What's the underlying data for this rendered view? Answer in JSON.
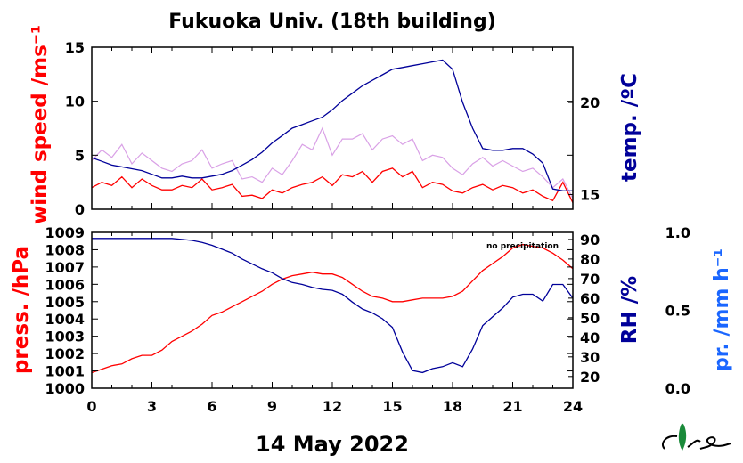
{
  "chart_data": [
    {
      "type": "line",
      "title": "Fukuoka Univ. (18th building)",
      "ylabel_left": "wind speed /ms⁻¹",
      "ylabel_right": "temp. /ºC",
      "xlim": [
        0,
        24
      ],
      "ylim_left": [
        0,
        15
      ],
      "ylim_right": [
        14.2,
        23.0
      ],
      "yticks_left": [
        "0",
        "5",
        "10",
        "15"
      ],
      "yticks_right": [
        "15",
        "20"
      ],
      "series": [
        {
          "axis": "left",
          "color": "#ff0000",
          "x": [
            0,
            0.5,
            1,
            1.5,
            2,
            2.5,
            3,
            3.5,
            4,
            4.5,
            5,
            5.5,
            6,
            6.5,
            7,
            7.5,
            8,
            8.5,
            9,
            9.5,
            10,
            10.5,
            11,
            11.5,
            12,
            12.5,
            13,
            13.5,
            14,
            14.5,
            15,
            15.5,
            16,
            16.5,
            17,
            17.5,
            18,
            18.5,
            19,
            19.5,
            20,
            20.5,
            21,
            21.5,
            22,
            22.5,
            23,
            23.5,
            24
          ],
          "values": [
            2.0,
            2.5,
            2.2,
            3.0,
            2.0,
            2.8,
            2.2,
            1.8,
            1.8,
            2.2,
            2.0,
            2.8,
            1.8,
            2.0,
            2.3,
            1.2,
            1.3,
            1.0,
            1.8,
            1.5,
            2.0,
            2.3,
            2.5,
            3.0,
            2.2,
            3.2,
            3.0,
            3.5,
            2.5,
            3.5,
            3.8,
            3.0,
            3.5,
            2.0,
            2.5,
            2.3,
            1.7,
            1.5,
            2.0,
            2.3,
            1.8,
            2.2,
            2.0,
            1.5,
            1.8,
            1.2,
            0.8,
            2.5,
            0.6
          ]
        },
        {
          "axis": "left",
          "color": "#d9a0e6",
          "note": "",
          "x": [
            0,
            0.5,
            1,
            1.5,
            2,
            2.5,
            3,
            3.5,
            4,
            4.5,
            5,
            5.5,
            6,
            6.5,
            7,
            7.5,
            8,
            8.5,
            9,
            9.5,
            10,
            10.5,
            11,
            11.5,
            12,
            12.5,
            13,
            13.5,
            14,
            14.5,
            15,
            15.5,
            16,
            16.5,
            17,
            17.5,
            18,
            18.5,
            19,
            19.5,
            20,
            20.5,
            21,
            21.5,
            22,
            22.5,
            23,
            23.5,
            24
          ],
          "values": [
            4.5,
            5.5,
            4.8,
            6.0,
            4.2,
            5.2,
            4.5,
            3.8,
            3.5,
            4.2,
            4.5,
            5.5,
            3.8,
            4.2,
            4.5,
            2.8,
            3.0,
            2.5,
            3.8,
            3.2,
            4.5,
            6.0,
            5.5,
            7.5,
            5.0,
            6.5,
            6.5,
            7.0,
            5.5,
            6.5,
            6.8,
            6.0,
            6.5,
            4.5,
            5.0,
            4.8,
            3.8,
            3.2,
            4.2,
            4.8,
            4.0,
            4.5,
            4.0,
            3.5,
            3.8,
            3.0,
            2.0,
            2.8,
            1.0
          ]
        },
        {
          "axis": "right",
          "color": "#000099",
          "x": [
            0,
            0.5,
            1,
            1.5,
            2,
            2.5,
            3,
            3.5,
            4,
            4.5,
            5,
            5.5,
            6,
            6.5,
            7,
            7.5,
            8,
            8.5,
            9,
            9.5,
            10,
            10.5,
            11,
            11.5,
            12,
            12.5,
            13,
            13.5,
            14,
            14.5,
            15,
            15.5,
            16,
            16.5,
            17,
            17.5,
            18,
            18.5,
            19,
            19.5,
            20,
            20.5,
            21,
            21.5,
            22,
            22.5,
            23,
            23.5,
            24
          ],
          "values": [
            17.0,
            16.8,
            16.6,
            16.5,
            16.4,
            16.3,
            16.1,
            15.9,
            15.9,
            16.0,
            15.9,
            15.9,
            16.0,
            16.1,
            16.3,
            16.6,
            16.9,
            17.3,
            17.8,
            18.2,
            18.6,
            18.8,
            19.0,
            19.2,
            19.6,
            20.1,
            20.5,
            20.9,
            21.2,
            21.5,
            21.8,
            21.9,
            22.0,
            22.1,
            22.2,
            22.3,
            21.8,
            20.0,
            18.6,
            17.5,
            17.4,
            17.4,
            17.5,
            17.5,
            17.2,
            16.7,
            15.3,
            15.2,
            15.2
          ]
        }
      ]
    },
    {
      "type": "line",
      "xlabel": "14 May 2022",
      "ylabel_left": "press. /hPa",
      "ylabel_right": "RH /%",
      "ylabel_right2": "pr. /mm h⁻¹",
      "annotation": "no precipitation",
      "xlim": [
        0,
        24
      ],
      "xticks": [
        "0",
        "3",
        "6",
        "9",
        "12",
        "15",
        "18",
        "21",
        "24"
      ],
      "ylim_left": [
        1000,
        1009
      ],
      "ylim_right": [
        14.0,
        93.6
      ],
      "ylim_right2": [
        0.0,
        1.0
      ],
      "yticks_left": [
        "1000",
        "1001",
        "1002",
        "1003",
        "1004",
        "1005",
        "1006",
        "1007",
        "1008",
        "1009"
      ],
      "yticks_right": [
        "20",
        "30",
        "40",
        "50",
        "60",
        "70",
        "80",
        "90"
      ],
      "yticks_right2": [
        "0.0",
        "0.5",
        "1.0"
      ],
      "series": [
        {
          "axis": "left",
          "color": "#ff0000",
          "x": [
            0,
            0.5,
            1,
            1.5,
            2,
            2.5,
            3,
            3.5,
            4,
            4.5,
            5,
            5.5,
            6,
            6.5,
            7,
            7.5,
            8,
            8.5,
            9,
            9.5,
            10,
            10.5,
            11,
            11.5,
            12,
            12.5,
            13,
            13.5,
            14,
            14.5,
            15,
            15.5,
            16,
            16.5,
            17,
            17.5,
            18,
            18.5,
            19,
            19.5,
            20,
            20.5,
            21,
            21.5,
            22,
            22.5,
            23,
            23.5,
            24
          ],
          "values": [
            1000.9,
            1001.1,
            1001.3,
            1001.4,
            1001.7,
            1001.9,
            1001.9,
            1002.2,
            1002.7,
            1003.0,
            1003.3,
            1003.7,
            1004.2,
            1004.4,
            1004.7,
            1005.0,
            1005.3,
            1005.6,
            1006.0,
            1006.3,
            1006.5,
            1006.6,
            1006.7,
            1006.6,
            1006.6,
            1006.4,
            1006.0,
            1005.6,
            1005.3,
            1005.2,
            1005.0,
            1005.0,
            1005.1,
            1005.2,
            1005.2,
            1005.2,
            1005.3,
            1005.6,
            1006.2,
            1006.8,
            1007.2,
            1007.6,
            1008.1,
            1008.3,
            1008.2,
            1008.1,
            1007.8,
            1007.4,
            1006.9
          ]
        },
        {
          "axis": "right",
          "color": "#000099",
          "x": [
            0,
            0.5,
            1,
            1.5,
            2,
            2.5,
            3,
            3.5,
            4,
            4.5,
            5,
            5.5,
            6,
            6.5,
            7,
            7.5,
            8,
            8.5,
            9,
            9.5,
            10,
            10.5,
            11,
            11.5,
            12,
            12.5,
            13,
            13.5,
            14,
            14.5,
            15,
            15.5,
            16,
            16.5,
            17,
            17.5,
            18,
            18.5,
            19,
            19.5,
            20,
            20.5,
            21,
            21.5,
            22,
            22.5,
            23,
            23.5,
            24
          ],
          "values": [
            90.5,
            90.5,
            90.5,
            90.5,
            90.5,
            90.5,
            90.5,
            90.5,
            90.5,
            90.0,
            89.5,
            88.5,
            87.0,
            85.0,
            83.0,
            80.0,
            77.5,
            75.0,
            73.0,
            70.0,
            68.0,
            67.0,
            65.5,
            64.5,
            64.0,
            62.0,
            58.0,
            54.5,
            52.5,
            49.5,
            45.0,
            32.5,
            23.0,
            22.0,
            24.0,
            25.0,
            27.0,
            25.0,
            34.0,
            46.0,
            50.5,
            55.0,
            60.5,
            62.0,
            62.0,
            58.5,
            67.0,
            67.0,
            60.0
          ]
        }
      ]
    }
  ]
}
